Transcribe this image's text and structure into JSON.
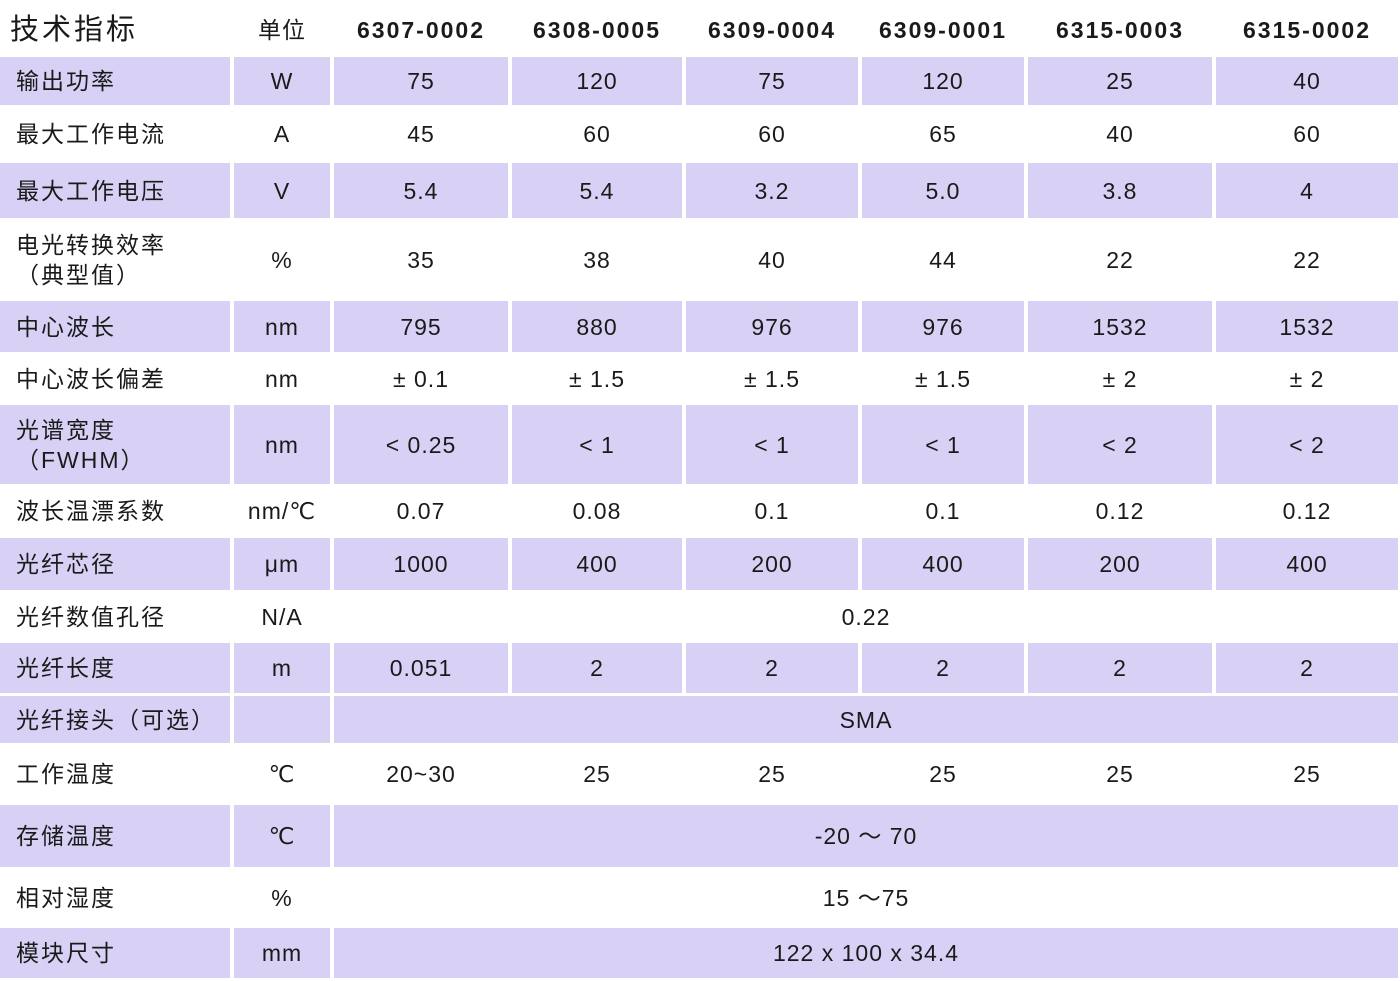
{
  "header": {
    "title": "技术指标",
    "unit": "单位",
    "models": [
      "6307-0002",
      "6308-0005",
      "6309-0004",
      "6309-0001",
      "6315-0003",
      "6315-0002"
    ]
  },
  "rows": [
    {
      "label": "输出功率",
      "unit": "W",
      "values": [
        "75",
        "120",
        "75",
        "120",
        "25",
        "40"
      ]
    },
    {
      "label": "最大工作电流",
      "unit": "A",
      "values": [
        "45",
        "60",
        "60",
        "65",
        "40",
        "60"
      ]
    },
    {
      "label": "最大工作电压",
      "unit": "V",
      "values": [
        "5.4",
        "5.4",
        "3.2",
        "5.0",
        "3.8",
        "4"
      ]
    },
    {
      "label": "电光转换效率\n（典型值）",
      "unit": "%",
      "values": [
        "35",
        "38",
        "40",
        "44",
        "22",
        "22"
      ]
    },
    {
      "label": "中心波长",
      "unit": "nm",
      "values": [
        "795",
        "880",
        "976",
        "976",
        "1532",
        "1532"
      ]
    },
    {
      "label": "中心波长偏差",
      "unit": "nm",
      "values": [
        "± 0.1",
        "± 1.5",
        "± 1.5",
        "± 1.5",
        "± 2",
        "± 2"
      ]
    },
    {
      "label": "光谱宽度\n（FWHM）",
      "unit": "nm",
      "values": [
        "< 0.25",
        "< 1",
        "< 1",
        "< 1",
        "< 2",
        "< 2"
      ]
    },
    {
      "label": "波长温漂系数",
      "unit": "nm/℃",
      "values": [
        "0.07",
        "0.08",
        "0.1",
        "0.1",
        "0.12",
        "0.12"
      ]
    },
    {
      "label": "光纤芯径",
      "unit": "μm",
      "values": [
        "1000",
        "400",
        "200",
        "400",
        "200",
        "400"
      ]
    },
    {
      "label": "光纤数值孔径",
      "unit": "N/A",
      "value": "0.22"
    },
    {
      "label": "光纤长度",
      "unit": "m",
      "values": [
        "0.051",
        "2",
        "2",
        "2",
        "2",
        "2"
      ]
    },
    {
      "label": "光纤接头（可选）",
      "value": "SMA"
    },
    {
      "label": "工作温度",
      "unit": "℃",
      "values": [
        "20~30",
        "25",
        "25",
        "25",
        "25",
        "25"
      ]
    },
    {
      "label": "存储温度",
      "unit": "℃",
      "value": "-20 ～ 70"
    },
    {
      "label": "相对湿度",
      "unit": "%",
      "value": "15 ～75"
    },
    {
      "label": "模块尺寸",
      "unit": "mm",
      "value": "122 x 100 x 34.4"
    }
  ]
}
